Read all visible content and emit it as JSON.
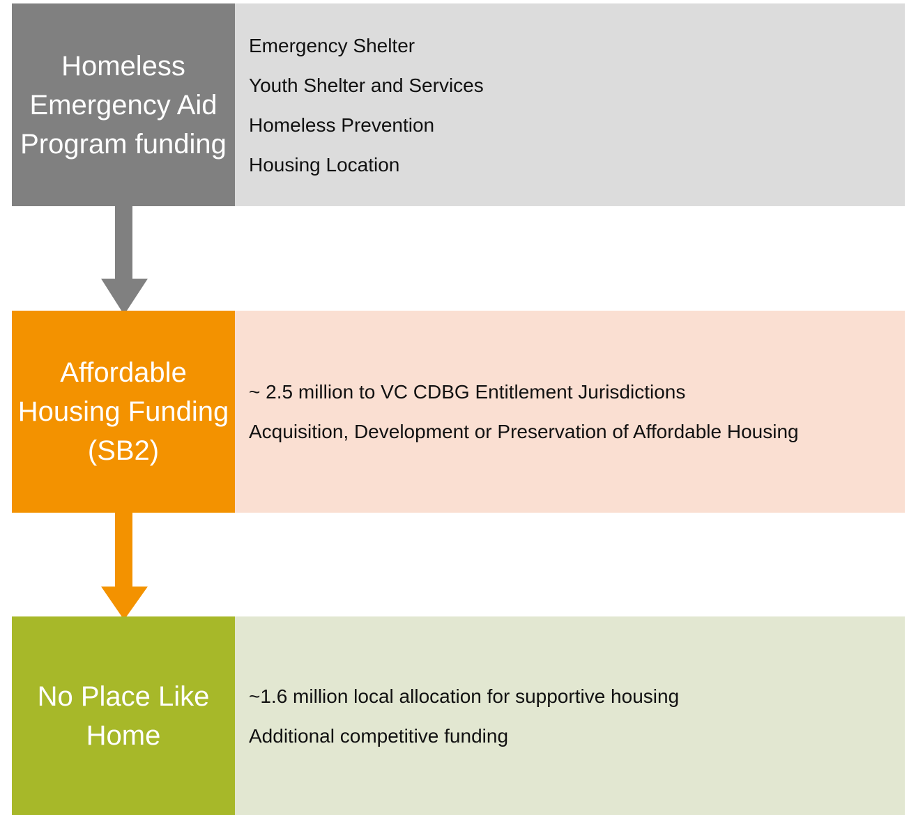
{
  "blocks": [
    {
      "title": "Homeless Emergency Aid Program funding",
      "items": [
        "Emergency Shelter",
        "Youth Shelter and Services",
        "Homeless Prevention",
        "Housing Location"
      ]
    },
    {
      "title": "Affordable Housing Funding (SB2)",
      "items": [
        "~ 2.5 million to VC CDBG Entitlement Jurisdictions",
        "Acquisition, Development or Preservation of Affordable Housing"
      ]
    },
    {
      "title": "No Place Like Home",
      "items": [
        "~1.6 million local allocation for supportive housing",
        "Additional competitive funding"
      ]
    }
  ]
}
